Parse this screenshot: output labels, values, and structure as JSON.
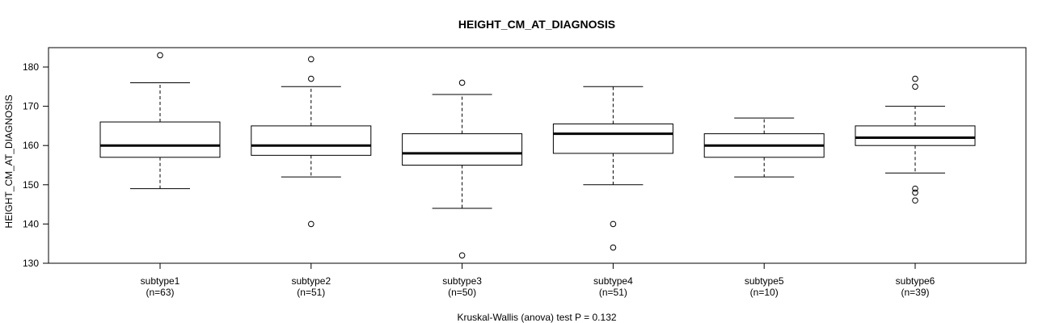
{
  "chart_data": {
    "type": "boxplot",
    "title": "HEIGHT_CM_AT_DIAGNOSIS",
    "ylabel": "HEIGHT_CM_AT_DIAGNOSIS",
    "xlabel": "",
    "ylim": [
      130,
      185
    ],
    "yticks": [
      130,
      140,
      150,
      160,
      170,
      180
    ],
    "footnote": "Kruskal-Wallis (anova) test P = 0.132",
    "groups": [
      {
        "name": "subtype1",
        "n_label": "(n=63)",
        "whisker_low": 149,
        "q1": 157,
        "median": 160,
        "q3": 166,
        "whisker_high": 176,
        "outliers": [
          183
        ]
      },
      {
        "name": "subtype2",
        "n_label": "(n=51)",
        "whisker_low": 152,
        "q1": 157.5,
        "median": 160,
        "q3": 165,
        "whisker_high": 175,
        "outliers": [
          182,
          177,
          140
        ]
      },
      {
        "name": "subtype3",
        "n_label": "(n=50)",
        "whisker_low": 144,
        "q1": 155,
        "median": 158,
        "q3": 163,
        "whisker_high": 173,
        "outliers": [
          176,
          132
        ]
      },
      {
        "name": "subtype4",
        "n_label": "(n=51)",
        "whisker_low": 150,
        "q1": 158,
        "median": 163,
        "q3": 165.5,
        "whisker_high": 175,
        "outliers": [
          140,
          134
        ]
      },
      {
        "name": "subtype5",
        "n_label": "(n=10)",
        "whisker_low": 152,
        "q1": 157,
        "median": 160,
        "q3": 163,
        "whisker_high": 167,
        "outliers": []
      },
      {
        "name": "subtype6",
        "n_label": "(n=39)",
        "whisker_low": 153,
        "q1": 160,
        "median": 162,
        "q3": 165,
        "whisker_high": 170,
        "outliers": [
          177,
          175,
          149,
          148,
          146
        ]
      }
    ]
  }
}
